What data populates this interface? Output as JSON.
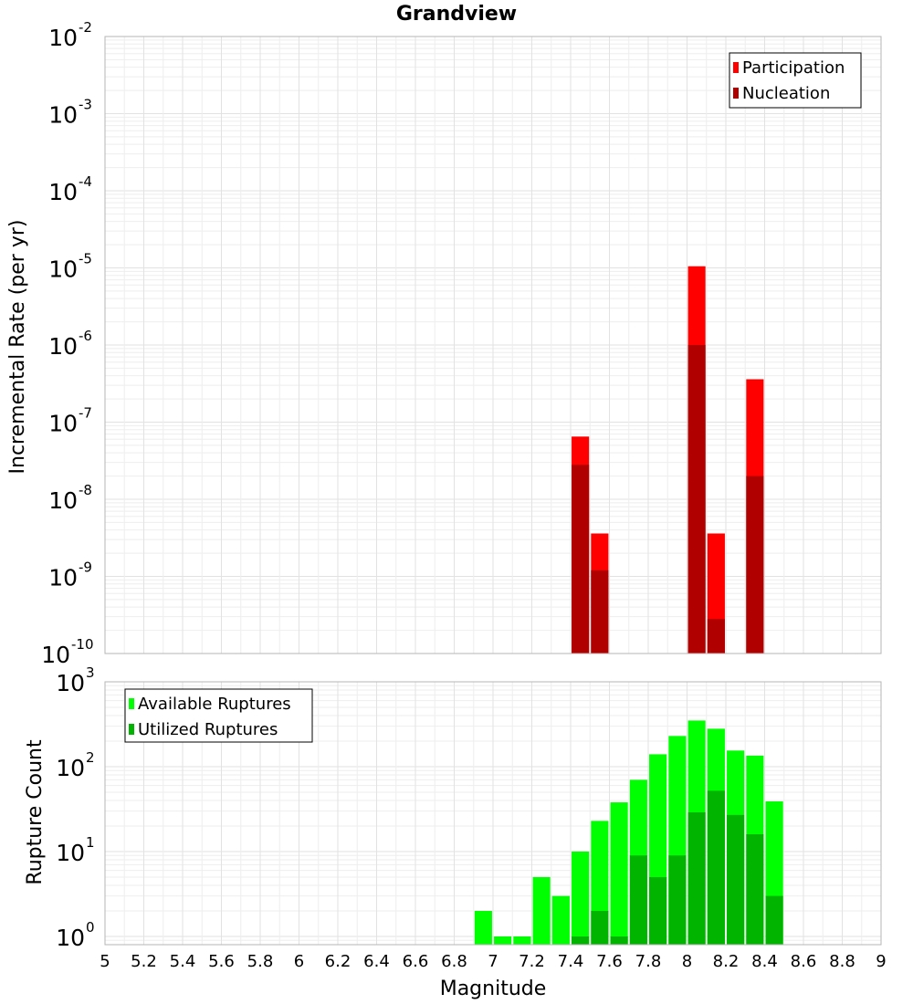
{
  "chart_data": [
    {
      "type": "bar",
      "title": "Grandview",
      "xlabel": "",
      "ylabel": "Incremental Rate (per yr)",
      "yscale": "log",
      "ylim": [
        1e-10,
        0.01
      ],
      "xlim": [
        5,
        9
      ],
      "grid": true,
      "legend_position": "top-right",
      "y_ticks": [
        {
          "base": "10",
          "exp": "-10"
        },
        {
          "base": "10",
          "exp": "-9"
        },
        {
          "base": "10",
          "exp": "-8"
        },
        {
          "base": "10",
          "exp": "-7"
        },
        {
          "base": "10",
          "exp": "-6"
        },
        {
          "base": "10",
          "exp": "-5"
        },
        {
          "base": "10",
          "exp": "-4"
        },
        {
          "base": "10",
          "exp": "-3"
        },
        {
          "base": "10",
          "exp": "-2"
        }
      ],
      "series": [
        {
          "name": "Participation",
          "color": "#ff0000",
          "points": [
            {
              "x": 7.45,
              "y": 6.5e-08
            },
            {
              "x": 7.55,
              "y": 3.6e-09
            },
            {
              "x": 8.05,
              "y": 1.05e-05
            },
            {
              "x": 8.15,
              "y": 3.6e-09
            },
            {
              "x": 8.35,
              "y": 3.6e-07
            }
          ]
        },
        {
          "name": "Nucleation",
          "color": "#b00000",
          "points": [
            {
              "x": 7.45,
              "y": 2.8e-08
            },
            {
              "x": 7.55,
              "y": 1.2e-09
            },
            {
              "x": 8.05,
              "y": 1e-06
            },
            {
              "x": 8.15,
              "y": 2.8e-10
            },
            {
              "x": 8.35,
              "y": 2e-08
            }
          ]
        }
      ]
    },
    {
      "type": "bar",
      "title": "",
      "xlabel": "Magnitude",
      "ylabel": "Rupture Count",
      "yscale": "log",
      "ylim": [
        0.8,
        1000
      ],
      "xlim": [
        5,
        9
      ],
      "grid": true,
      "legend_position": "top-left",
      "x_ticks": [
        "5",
        "5.2",
        "5.4",
        "5.6",
        "5.8",
        "6",
        "6.2",
        "6.4",
        "6.6",
        "6.8",
        "7",
        "7.2",
        "7.4",
        "7.6",
        "7.8",
        "8",
        "8.2",
        "8.4",
        "8.6",
        "8.8",
        "9"
      ],
      "y_ticks": [
        {
          "base": "10",
          "exp": "0"
        },
        {
          "base": "10",
          "exp": "1"
        },
        {
          "base": "10",
          "exp": "2"
        },
        {
          "base": "10",
          "exp": "3"
        }
      ],
      "series": [
        {
          "name": "Available Ruptures",
          "color": "#00ff00",
          "points": [
            {
              "x": 6.95,
              "y": 2
            },
            {
              "x": 7.05,
              "y": 1
            },
            {
              "x": 7.15,
              "y": 1
            },
            {
              "x": 7.25,
              "y": 5
            },
            {
              "x": 7.35,
              "y": 3
            },
            {
              "x": 7.45,
              "y": 10
            },
            {
              "x": 7.55,
              "y": 23
            },
            {
              "x": 7.65,
              "y": 38
            },
            {
              "x": 7.75,
              "y": 70
            },
            {
              "x": 7.85,
              "y": 140
            },
            {
              "x": 7.95,
              "y": 230
            },
            {
              "x": 8.05,
              "y": 350
            },
            {
              "x": 8.15,
              "y": 280
            },
            {
              "x": 8.25,
              "y": 155
            },
            {
              "x": 8.35,
              "y": 135
            },
            {
              "x": 8.45,
              "y": 39
            }
          ]
        },
        {
          "name": "Utilized Ruptures",
          "color": "#00b400",
          "points": [
            {
              "x": 7.45,
              "y": 1
            },
            {
              "x": 7.55,
              "y": 2
            },
            {
              "x": 7.65,
              "y": 1
            },
            {
              "x": 7.75,
              "y": 9
            },
            {
              "x": 7.85,
              "y": 5
            },
            {
              "x": 7.95,
              "y": 9
            },
            {
              "x": 8.05,
              "y": 29
            },
            {
              "x": 8.15,
              "y": 52
            },
            {
              "x": 8.25,
              "y": 27
            },
            {
              "x": 8.35,
              "y": 16
            },
            {
              "x": 8.45,
              "y": 3
            }
          ]
        }
      ]
    }
  ]
}
